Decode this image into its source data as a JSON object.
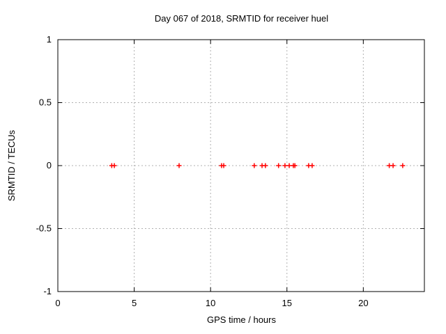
{
  "title": "Day 067 of 2018, SRMTID for receiver huel",
  "chart_data": {
    "type": "scatter",
    "title": "Day 067 of 2018, SRMTID for receiver huel",
    "xlabel": "GPS time / hours",
    "ylabel": "SRMTID / TECUs",
    "xlim": [
      0,
      24
    ],
    "ylim": [
      -1,
      1
    ],
    "xticks": [
      0,
      5,
      10,
      15,
      20
    ],
    "yticks": [
      -1,
      -0.5,
      0,
      0.5,
      1
    ],
    "grid": true,
    "legend": "none",
    "marker": "plus",
    "marker_color": "#ff0000",
    "grid_color": "#b0b0b0",
    "axis_color": "#000000",
    "background_color": "#ffffff",
    "points": [
      {
        "x": 3.53,
        "y": 0
      },
      {
        "x": 3.7,
        "y": 0
      },
      {
        "x": 7.94,
        "y": 0
      },
      {
        "x": 10.72,
        "y": 0
      },
      {
        "x": 10.86,
        "y": 0
      },
      {
        "x": 12.86,
        "y": 0
      },
      {
        "x": 13.37,
        "y": 0
      },
      {
        "x": 13.59,
        "y": 0
      },
      {
        "x": 14.45,
        "y": 0
      },
      {
        "x": 14.87,
        "y": 0
      },
      {
        "x": 15.15,
        "y": 0
      },
      {
        "x": 15.42,
        "y": 0
      },
      {
        "x": 15.52,
        "y": 0
      },
      {
        "x": 16.42,
        "y": 0
      },
      {
        "x": 16.65,
        "y": 0
      },
      {
        "x": 21.7,
        "y": 0
      },
      {
        "x": 21.95,
        "y": 0
      },
      {
        "x": 22.58,
        "y": 0
      }
    ]
  }
}
